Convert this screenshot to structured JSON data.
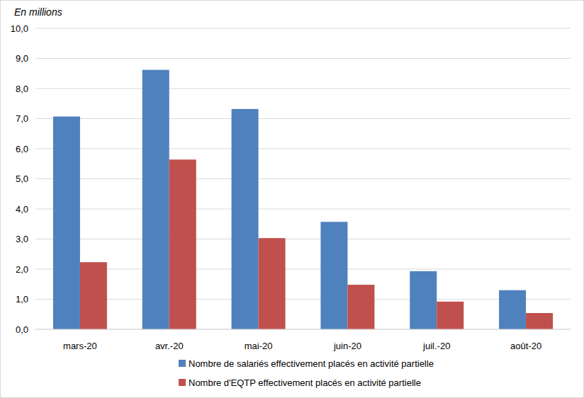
{
  "chart_data": {
    "type": "bar",
    "y_label": "En millions",
    "categories": [
      "mars-20",
      "avr.-20",
      "mai-20",
      "juin-20",
      "juil.-20",
      "août-20"
    ],
    "series": [
      {
        "name": "Nombre de salariés effectivement placés en activité partielle",
        "color": "#4f81bd",
        "values": [
          7.07,
          8.62,
          7.32,
          3.57,
          1.93,
          1.3
        ]
      },
      {
        "name": "Nombre d'EQTP effectivement placés en activité partielle",
        "color": "#c0504d",
        "values": [
          2.23,
          5.64,
          3.03,
          1.48,
          0.92,
          0.54
        ]
      }
    ],
    "ylim": [
      0,
      10
    ],
    "yticks": [
      {
        "value": 0,
        "label": "0,0"
      },
      {
        "value": 1,
        "label": "1,0"
      },
      {
        "value": 2,
        "label": "2,0"
      },
      {
        "value": 3,
        "label": "3,0"
      },
      {
        "value": 4,
        "label": "4,0"
      },
      {
        "value": 5,
        "label": "5,0"
      },
      {
        "value": 6,
        "label": "6,0"
      },
      {
        "value": 7,
        "label": "7,0"
      },
      {
        "value": 8,
        "label": "8,0"
      },
      {
        "value": 9,
        "label": "9,0"
      },
      {
        "value": 10,
        "label": "10,0"
      }
    ],
    "grid": true,
    "legend": "bottom"
  }
}
